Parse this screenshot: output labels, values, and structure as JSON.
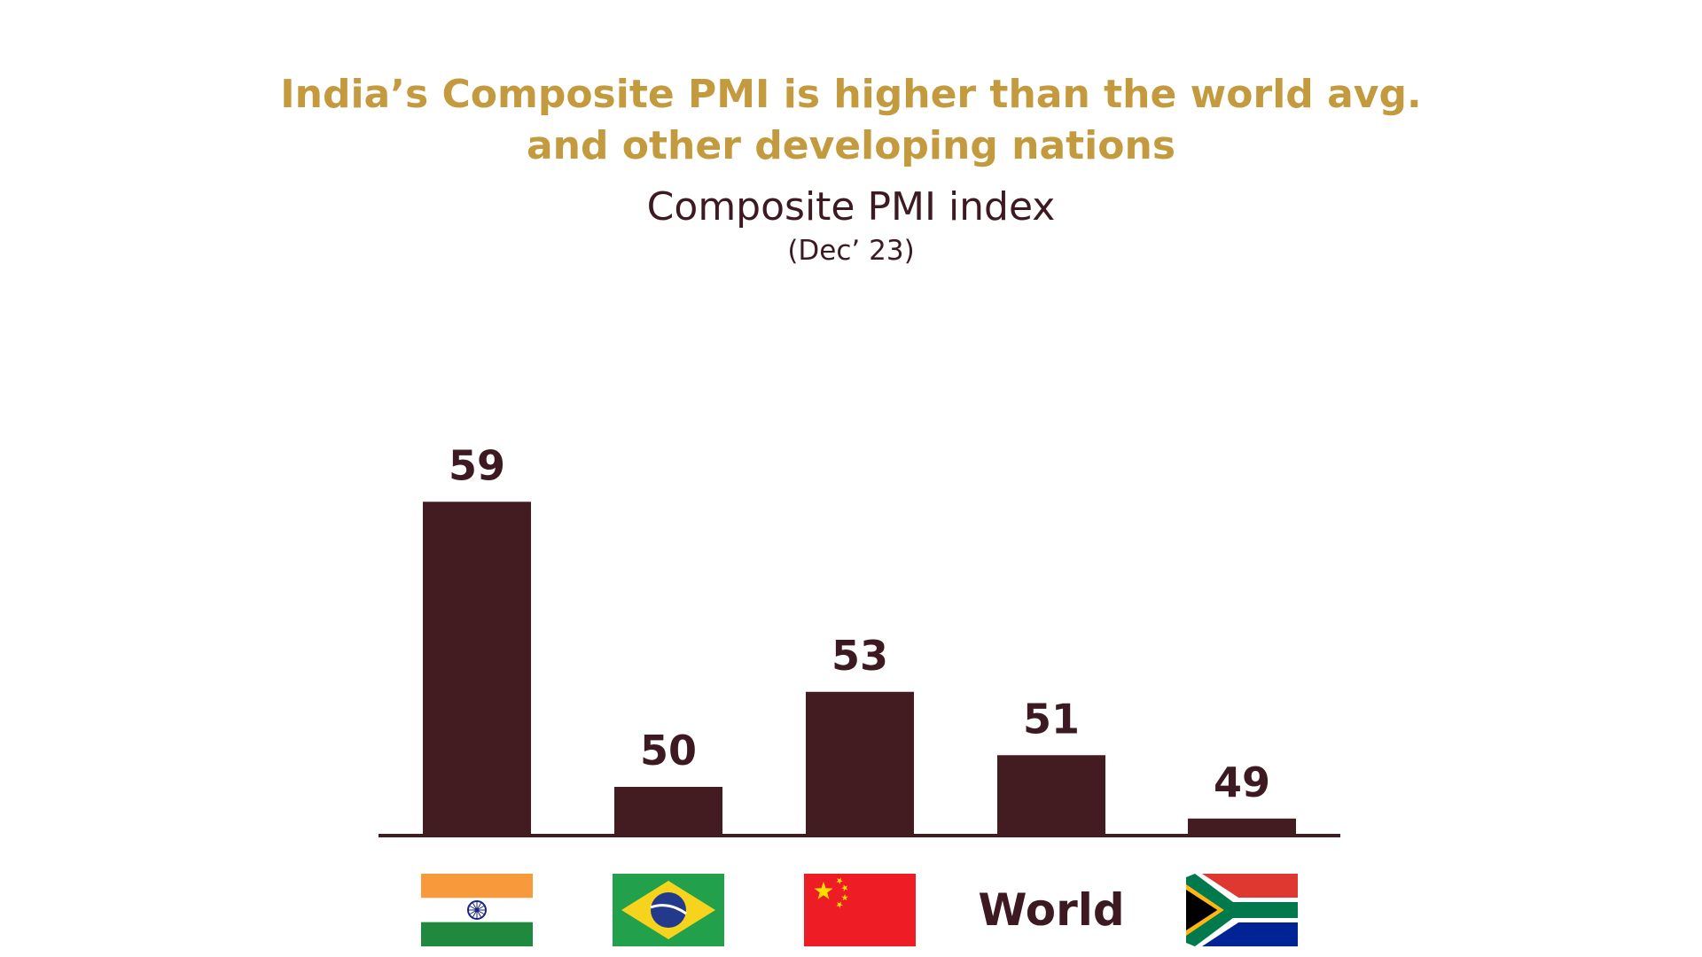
{
  "headline": {
    "line1": "India’s Composite PMI is higher than the world avg.",
    "line2": "and other developing nations"
  },
  "colors": {
    "headline": "#c49a3e",
    "bar": "#431c22",
    "text": "#3d1a22"
  },
  "chart_data": {
    "type": "bar",
    "title": "Composite PMI index",
    "subtitle": "(Dec’ 23)",
    "categories": [
      "India",
      "Brazil",
      "China",
      "World",
      "South Africa"
    ],
    "category_display": [
      {
        "kind": "flag",
        "icon": "india-flag-icon"
      },
      {
        "kind": "flag",
        "icon": "brazil-flag-icon"
      },
      {
        "kind": "flag",
        "icon": "china-flag-icon"
      },
      {
        "kind": "text",
        "label": "World"
      },
      {
        "kind": "flag",
        "icon": "south-africa-flag-icon"
      }
    ],
    "values": [
      59,
      50,
      53,
      51,
      49
    ],
    "data_labels": [
      "59",
      "50",
      "53",
      "51",
      "49"
    ],
    "xlabel": "",
    "ylabel": "",
    "grid": false,
    "legend": "none"
  }
}
